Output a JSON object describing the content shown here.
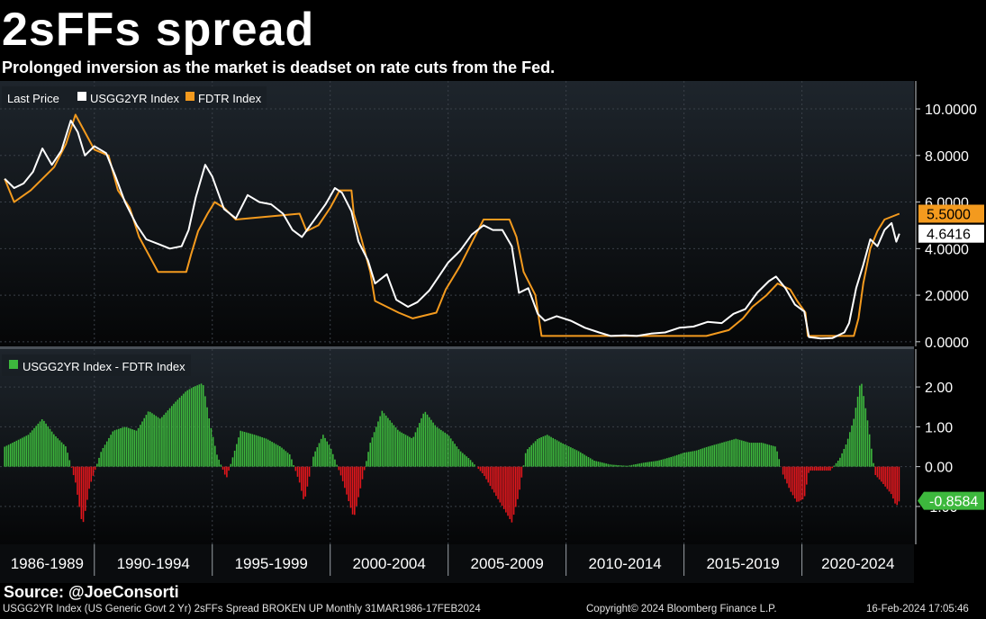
{
  "header": {
    "title": "2sFFs spread",
    "subtitle": "Prolonged inversion as the market is deadset on rate cuts from the Fed."
  },
  "footer": {
    "source": "Source: @JoeConsorti",
    "description": "USGG2YR Index (US Generic Govt 2 Yr) 2sFFs Spread BROKEN UP  Monthly 31MAR1986-17FEB2024",
    "copyright": "Copyright© 2024 Bloomberg Finance L.P.",
    "timestamp": "16-Feb-2024 17:05:46"
  },
  "colors": {
    "background": "#000000",
    "usgg2yr": "#ffffff",
    "fdtr": "#f39a1e",
    "spread_positive": "#3db83d",
    "spread_negative": "#e3161c",
    "grid": "#3a4048"
  },
  "chart_data": [
    {
      "type": "line",
      "legend": {
        "prefix": "Last Price",
        "placement": "top-left",
        "items": [
          {
            "name": "USGG2YR Index",
            "color": "#ffffff"
          },
          {
            "name": "FDTR Index",
            "color": "#f39a1e"
          }
        ]
      },
      "ylim": [
        -0.2,
        11.2
      ],
      "yticks": [
        0,
        2,
        4,
        6,
        8,
        10
      ],
      "ytick_labels": [
        "0.0000",
        "2.0000",
        "4.0000",
        "6.0000",
        "8.0000",
        "10.0000"
      ],
      "grid": true,
      "last_value_labels": [
        {
          "series": "FDTR Index",
          "text": "5.5000",
          "value": 5.5
        },
        {
          "series": "USGG2YR Index",
          "text": "4.6416",
          "value": 4.6416
        }
      ],
      "series": [
        {
          "name": "USGG2YR Index",
          "x": [
            1986.2,
            1986.6,
            1987.0,
            1987.4,
            1987.8,
            1988.2,
            1988.6,
            1989.0,
            1989.3,
            1989.6,
            1990.0,
            1990.5,
            1990.9,
            1991.3,
            1991.8,
            1992.2,
            1992.7,
            1993.2,
            1993.7,
            1994.0,
            1994.3,
            1994.7,
            1995.0,
            1995.5,
            1996.0,
            1996.5,
            1997.0,
            1997.5,
            1998.0,
            1998.4,
            1998.8,
            1999.3,
            1999.8,
            2000.2,
            2000.5,
            2000.9,
            2001.2,
            2001.6,
            2001.9,
            2002.4,
            2002.8,
            2003.3,
            2003.7,
            2004.2,
            2004.6,
            2005.0,
            2005.5,
            2006.0,
            2006.5,
            2006.9,
            2007.3,
            2007.7,
            2008.0,
            2008.4,
            2008.8,
            2009.1,
            2009.6,
            2010.2,
            2010.8,
            2011.4,
            2011.9,
            2012.5,
            2013.0,
            2013.6,
            2014.2,
            2014.8,
            2015.4,
            2016.0,
            2016.6,
            2017.1,
            2017.6,
            2018.1,
            2018.6,
            2018.9,
            2019.3,
            2019.7,
            2020.1,
            2020.3,
            2020.8,
            2021.3,
            2021.8,
            2022.0,
            2022.3,
            2022.6,
            2022.9,
            2023.2,
            2023.5,
            2023.8,
            2024.0,
            2024.13
          ],
          "values": [
            7.0,
            6.6,
            6.8,
            7.3,
            8.3,
            7.6,
            8.2,
            9.5,
            9.0,
            8.0,
            8.4,
            8.1,
            7.1,
            6.0,
            5.0,
            4.4,
            4.2,
            4.0,
            4.1,
            4.8,
            6.2,
            7.6,
            7.1,
            5.7,
            5.3,
            6.3,
            6.0,
            5.9,
            5.5,
            4.8,
            4.5,
            5.2,
            5.9,
            6.6,
            6.4,
            5.6,
            4.3,
            3.5,
            2.5,
            2.9,
            1.8,
            1.5,
            1.7,
            2.2,
            2.8,
            3.4,
            3.9,
            4.6,
            5.0,
            4.8,
            4.8,
            4.1,
            2.1,
            2.3,
            1.2,
            0.9,
            1.1,
            0.9,
            0.6,
            0.4,
            0.25,
            0.27,
            0.25,
            0.35,
            0.4,
            0.6,
            0.65,
            0.85,
            0.8,
            1.2,
            1.4,
            2.1,
            2.6,
            2.8,
            2.3,
            1.6,
            1.3,
            0.2,
            0.14,
            0.16,
            0.4,
            0.8,
            2.3,
            3.3,
            4.4,
            4.1,
            4.8,
            5.1,
            4.3,
            4.6416
          ]
        },
        {
          "name": "FDTR Index",
          "x": [
            1986.2,
            1986.6,
            1987.3,
            1987.8,
            1988.3,
            1988.8,
            1989.2,
            1989.6,
            1990.0,
            1990.6,
            1991.0,
            1991.5,
            1991.9,
            1992.3,
            1992.7,
            1993.9,
            1994.1,
            1994.4,
            1994.8,
            1995.1,
            1995.5,
            1996.0,
            1998.7,
            1999.0,
            1999.5,
            2000.0,
            2000.4,
            2000.9,
            2001.0,
            2001.3,
            2001.7,
            2001.9,
            2002.9,
            2003.5,
            2004.5,
            2004.9,
            2005.5,
            2006.0,
            2006.5,
            2007.6,
            2007.9,
            2008.2,
            2008.7,
            2008.96,
            2015.95,
            2016.9,
            2017.5,
            2017.9,
            2018.5,
            2018.97,
            2019.5,
            2019.8,
            2020.15,
            2020.25,
            2022.2,
            2022.4,
            2022.6,
            2022.9,
            2023.2,
            2023.5,
            2024.13
          ],
          "values": [
            7.0,
            6.0,
            6.5,
            7.0,
            7.5,
            8.5,
            9.75,
            9.0,
            8.25,
            8.0,
            6.5,
            5.75,
            4.5,
            3.75,
            3.0,
            3.0,
            3.75,
            4.75,
            5.5,
            6.0,
            5.75,
            5.25,
            5.5,
            4.75,
            5.0,
            5.75,
            6.5,
            6.5,
            5.5,
            4.5,
            3.0,
            1.75,
            1.25,
            1.0,
            1.25,
            2.25,
            3.25,
            4.25,
            5.25,
            5.25,
            4.5,
            3.0,
            2.0,
            0.25,
            0.25,
            0.5,
            1.0,
            1.5,
            2.0,
            2.5,
            2.25,
            1.75,
            1.25,
            0.25,
            0.25,
            1.0,
            2.5,
            4.0,
            4.75,
            5.25,
            5.5
          ]
        }
      ]
    },
    {
      "type": "bar",
      "legend": {
        "placement": "top-left",
        "items": [
          {
            "name": "USGG2YR Index - FDTR Index",
            "color": "#3db83d"
          }
        ]
      },
      "ylim": [
        -1.95,
        2.95
      ],
      "yticks": [
        -1,
        0,
        1,
        2
      ],
      "ytick_labels": [
        "-1.00",
        "0.00",
        "1.00",
        "2.00"
      ],
      "grid": true,
      "last_value_label": {
        "text": "-0.8584",
        "value": -0.8584
      },
      "series": [
        {
          "name": "USGG2YR Index - FDTR Index",
          "x": [
            1986.2,
            1987.2,
            1987.8,
            1988.3,
            1988.8,
            1989.2,
            1989.5,
            1989.8,
            1990.3,
            1990.8,
            1991.3,
            1991.8,
            1992.3,
            1992.8,
            1993.4,
            1993.9,
            1994.2,
            1994.6,
            1994.9,
            1995.2,
            1995.6,
            1996.2,
            1996.8,
            1997.3,
            1997.9,
            1998.3,
            1998.7,
            1998.9,
            1999.3,
            1999.7,
            2000.0,
            2000.5,
            2000.8,
            2001.0,
            2001.3,
            2001.7,
            2002.2,
            2002.9,
            2003.5,
            2004.0,
            2004.5,
            2005.0,
            2005.5,
            2005.9,
            2006.5,
            2006.9,
            2007.3,
            2007.7,
            2008.0,
            2008.3,
            2008.8,
            2009.2,
            2009.8,
            2010.5,
            2011.2,
            2011.9,
            2012.6,
            2013.3,
            2013.9,
            2014.5,
            2015.0,
            2015.5,
            2016.0,
            2016.6,
            2017.2,
            2017.8,
            2018.3,
            2018.9,
            2019.2,
            2019.5,
            2019.8,
            2020.1,
            2020.3,
            2020.7,
            2021.2,
            2021.6,
            2021.9,
            2022.2,
            2022.5,
            2022.8,
            2023.1,
            2023.4,
            2023.8,
            2024.0,
            2024.13
          ],
          "values": [
            0.5,
            0.8,
            1.2,
            0.8,
            0.5,
            -0.4,
            -1.5,
            -0.5,
            0.4,
            0.9,
            1.0,
            0.9,
            1.4,
            1.2,
            1.6,
            1.9,
            2.0,
            2.1,
            1.1,
            0.3,
            -0.3,
            0.9,
            0.8,
            0.7,
            0.5,
            0.3,
            -0.4,
            -0.9,
            0.3,
            0.8,
            0.5,
            -0.3,
            -0.9,
            -1.3,
            -0.5,
            0.6,
            1.4,
            0.9,
            0.7,
            1.4,
            1.0,
            0.8,
            0.4,
            0.2,
            -0.2,
            -0.6,
            -1.0,
            -1.4,
            -0.7,
            0.4,
            0.7,
            0.8,
            0.6,
            0.4,
            0.15,
            0.05,
            0.02,
            0.1,
            0.15,
            0.25,
            0.35,
            0.4,
            0.5,
            0.6,
            0.7,
            0.6,
            0.6,
            0.5,
            -0.2,
            -0.6,
            -0.9,
            -0.8,
            -0.1,
            -0.1,
            -0.1,
            0.2,
            0.6,
            1.2,
            2.2,
            1.1,
            -0.2,
            -0.4,
            -0.7,
            -1.0,
            -0.8584
          ]
        }
      ]
    }
  ],
  "x_axis": {
    "range": [
      1986.0,
      2024.75
    ],
    "categories": [
      "1986-1989",
      "1990-1994",
      "1995-1999",
      "2000-2004",
      "2005-2009",
      "2010-2014",
      "2015-2019",
      "2020-2024"
    ],
    "boundaries": [
      1990,
      1995,
      2000,
      2005,
      2010,
      2015,
      2020
    ]
  }
}
